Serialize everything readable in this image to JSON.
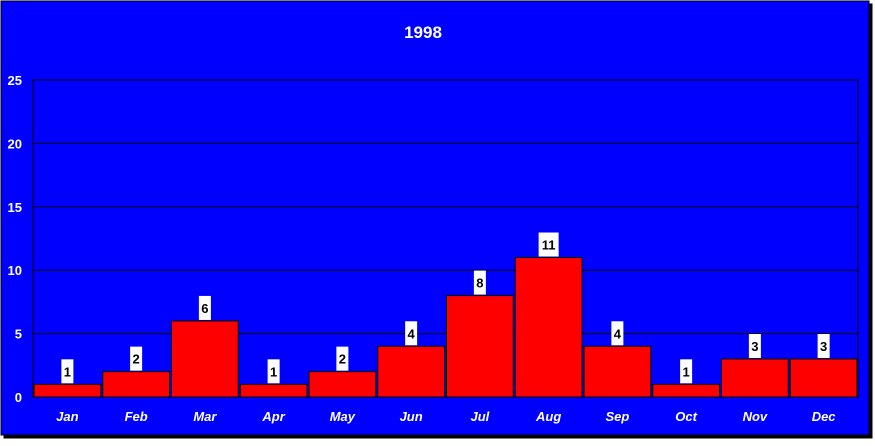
{
  "chart_data": {
    "type": "bar",
    "title": "1998",
    "categories": [
      "Jan",
      "Feb",
      "Mar",
      "Apr",
      "May",
      "Jun",
      "Jul",
      "Aug",
      "Sep",
      "Oct",
      "Nov",
      "Dec"
    ],
    "values": [
      1,
      2,
      6,
      1,
      2,
      4,
      8,
      11,
      4,
      1,
      3,
      3
    ],
    "ylim": [
      0,
      25
    ],
    "yticks": [
      0,
      5,
      10,
      15,
      20,
      25
    ],
    "grid": true,
    "data_labels": true,
    "legend": "none",
    "colors": {
      "background": "#0000ff",
      "plot_area": "#0000ff",
      "bar": "#ff0000",
      "bar_outline": "#000000",
      "gridline": "#000000",
      "text": "#ffffff",
      "label_box": "#ffffff",
      "label_text": "#000000"
    }
  }
}
